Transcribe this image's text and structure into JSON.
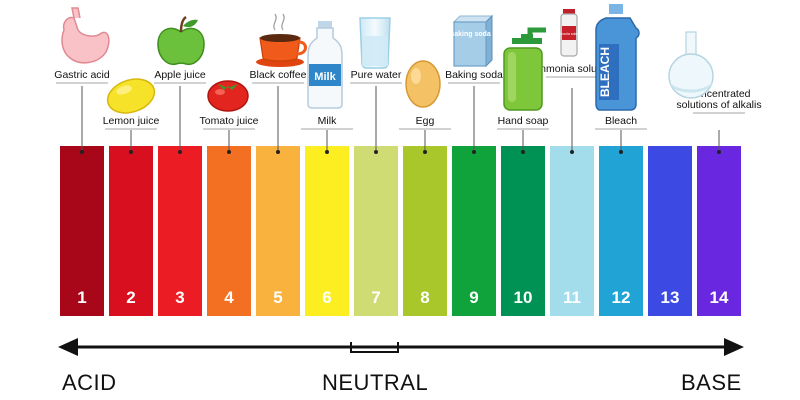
{
  "scale": [
    {
      "value": "1",
      "color": "#a8071a",
      "item": "Gastric acid",
      "icon": "stomach-icon"
    },
    {
      "value": "2",
      "color": "#d80f1f",
      "item": "Lemon juice",
      "icon": "lemon-icon"
    },
    {
      "value": "3",
      "color": "#ec1c24",
      "item": "Apple juice",
      "icon": "apple-icon"
    },
    {
      "value": "4",
      "color": "#f36f21",
      "item": "Tomato juice",
      "icon": "tomato-icon"
    },
    {
      "value": "5",
      "color": "#f9b23d",
      "item": "Black coffee",
      "icon": "coffee-cup-icon"
    },
    {
      "value": "6",
      "color": "#fdee21",
      "item": "Milk",
      "icon": "milk-bottle-icon"
    },
    {
      "value": "7",
      "color": "#cfdc73",
      "item": "Pure water",
      "icon": "water-glass-icon"
    },
    {
      "value": "8",
      "color": "#a9c62b",
      "item": "Egg",
      "icon": "egg-icon"
    },
    {
      "value": "9",
      "color": "#10a33b",
      "item": "Baking soda",
      "icon": "baking-soda-box-icon"
    },
    {
      "value": "10",
      "color": "#009255",
      "item": "Hand soap",
      "icon": "soap-dispenser-icon"
    },
    {
      "value": "11",
      "color": "#a3dceb",
      "item": "Ammonia solution",
      "icon": "ammonia-bottle-icon"
    },
    {
      "value": "12",
      "color": "#22a3d6",
      "item": "Bleach",
      "icon": "bleach-bottle-icon"
    },
    {
      "value": "13",
      "color": "#3d49e3",
      "item": "",
      "icon": ""
    },
    {
      "value": "14",
      "color": "#6a27e0",
      "item": "Concentrated solutions of alkalis",
      "icon": "flask-icon"
    }
  ],
  "axis": {
    "left": "ACID",
    "center": "NEUTRAL",
    "right": "BASE"
  },
  "product_text": {
    "milk": "Milk",
    "baking_soda": "Baking soda",
    "bleach": "BLEACH",
    "ammonia": "Ammonia solution"
  }
}
